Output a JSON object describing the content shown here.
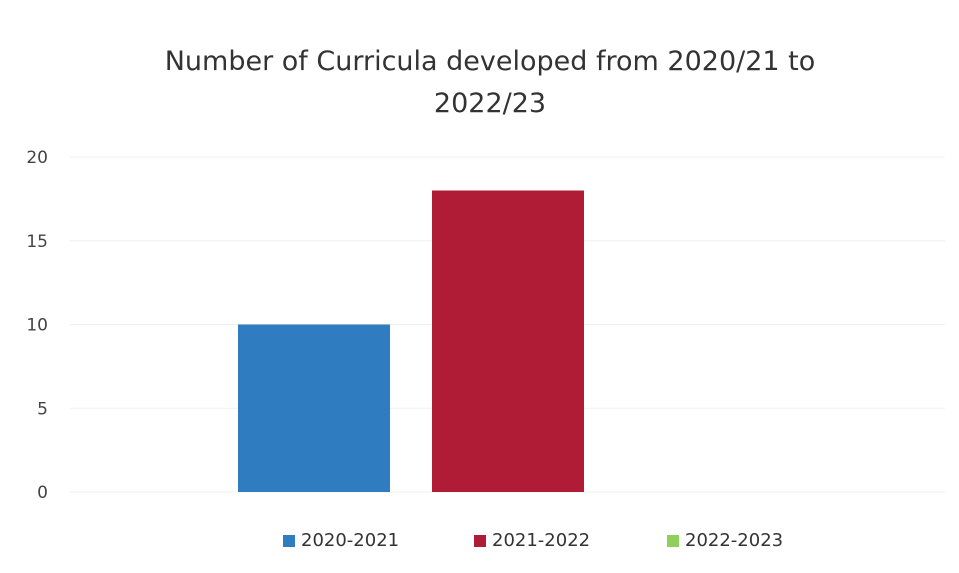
{
  "chart_data": {
    "type": "bar",
    "title_lines": [
      "Number of Curricula developed from 2020/21 to",
      "2022/23"
    ],
    "categories": [
      "2020-2021",
      "2021-2022",
      "2022-2023"
    ],
    "values": [
      10,
      18,
      0
    ],
    "colors": [
      "#2f7cc1",
      "#b01c35",
      "#8fd05c"
    ],
    "yticks": [
      0,
      5,
      10,
      15,
      20
    ],
    "ylim": [
      0,
      20
    ],
    "grid": true,
    "legend_position": "bottom"
  }
}
